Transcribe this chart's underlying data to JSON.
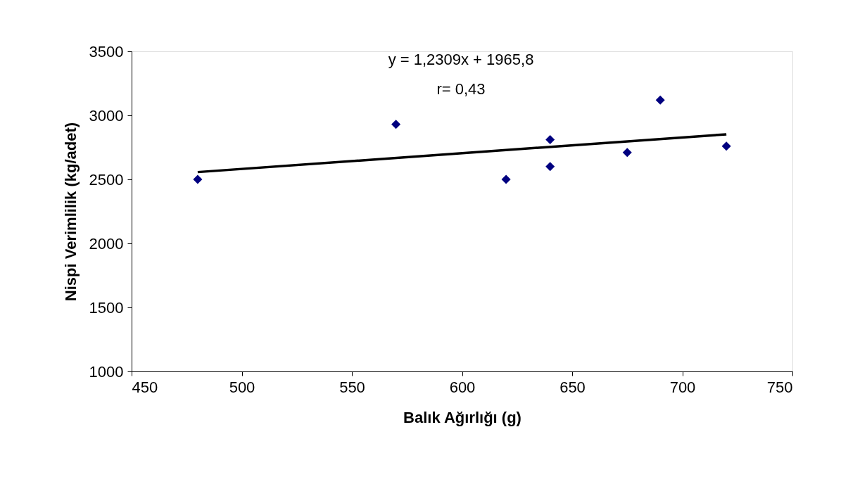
{
  "chart_data": {
    "type": "scatter",
    "xlabel": "Balık Ağırlığı (g)",
    "ylabel": "Nispi Verimlilik (kg/adet)",
    "annotations": [
      "y = 1,2309x + 1965,8",
      "r= 0,43"
    ],
    "series": [
      {
        "color": "#000080",
        "marker": "diamond",
        "x": [
          480,
          570,
          620,
          640,
          640,
          675,
          690,
          720
        ],
        "values": [
          2500,
          2930,
          2500,
          2810,
          2600,
          2710,
          3120,
          2760
        ]
      },
      {
        "type": "line",
        "color": "#000000",
        "line_style": "solid",
        "x": [
          480,
          720
        ],
        "values": [
          2557,
          2852
        ]
      }
    ],
    "xlim": [
      450,
      750
    ],
    "xticks": [
      450,
      500,
      550,
      600,
      650,
      700,
      750
    ],
    "ylim": [
      1000,
      3500
    ],
    "yticks": [
      1000,
      1500,
      2000,
      2500,
      3000,
      3500
    ],
    "grid": false
  }
}
